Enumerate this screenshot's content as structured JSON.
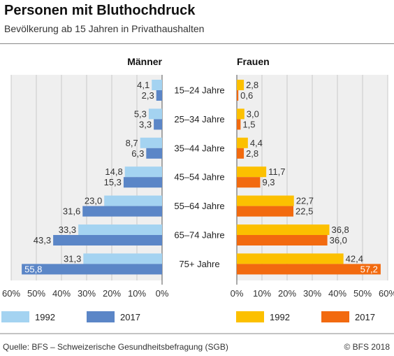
{
  "title": "Personen mit Bluthochdruck",
  "subtitle": "Bevölkerung ab 15 Jahren in Privathaushalten",
  "source": "Quelle: BFS – Schweizerische Gesundheitsbefragung (SGB)",
  "copyright": "© BFS 2018",
  "colors": {
    "men_1992": "#a4d3f1",
    "men_2017": "#5b86c7",
    "women_1992": "#fcc000",
    "women_2017": "#f26a0f",
    "plot_bg": "#efefef"
  },
  "chart_data": [
    {
      "type": "bar",
      "orientation": "horizontal",
      "direction": "right-to-left",
      "title": "Männer",
      "categories": [
        "15–24 Jahre",
        "25–34 Jahre",
        "35–44 Jahre",
        "45–54 Jahre",
        "55–64 Jahre",
        "65–74 Jahre",
        "75+ Jahre"
      ],
      "series": [
        {
          "name": "1992",
          "values": [
            4.1,
            5.3,
            8.7,
            14.8,
            23.0,
            33.3,
            31.3
          ]
        },
        {
          "name": "2017",
          "values": [
            2.3,
            3.3,
            6.3,
            15.3,
            31.6,
            43.3,
            55.8
          ]
        }
      ],
      "value_labels": [
        [
          "4,1",
          "5,3",
          "8,7",
          "14,8",
          "23,0",
          "33,3",
          "31,3"
        ],
        [
          "2,3",
          "3,3",
          "6,3",
          "15,3",
          "31,6",
          "43,3",
          "55,8"
        ]
      ],
      "xlim": [
        0,
        60
      ],
      "ticks": [
        60,
        50,
        40,
        30,
        20,
        10,
        0
      ],
      "tick_labels": [
        "60%",
        "50%",
        "40%",
        "30%",
        "20%",
        "10%",
        "0%"
      ],
      "grid": true,
      "legend": "bottom-left"
    },
    {
      "type": "bar",
      "orientation": "horizontal",
      "direction": "left-to-right",
      "title": "Frauen",
      "categories": [
        "15–24 Jahre",
        "25–34 Jahre",
        "35–44 Jahre",
        "45–54 Jahre",
        "55–64 Jahre",
        "65–74 Jahre",
        "75+ Jahre"
      ],
      "series": [
        {
          "name": "1992",
          "values": [
            2.8,
            3.0,
            4.4,
            11.7,
            22.7,
            36.8,
            42.4
          ]
        },
        {
          "name": "2017",
          "values": [
            0.6,
            1.5,
            2.8,
            9.3,
            22.5,
            36.0,
            57.2
          ]
        }
      ],
      "value_labels": [
        [
          "2,8",
          "3,0",
          "4,4",
          "11,7",
          "22,7",
          "36,8",
          "42,4"
        ],
        [
          "0,6",
          "1,5",
          "2,8",
          "9,3",
          "22,5",
          "36,0",
          "57,2"
        ]
      ],
      "xlim": [
        0,
        60
      ],
      "ticks": [
        0,
        10,
        20,
        30,
        40,
        50,
        60
      ],
      "tick_labels": [
        "0%",
        "10%",
        "20%",
        "30%",
        "40%",
        "50%",
        "60%"
      ],
      "grid": true,
      "legend": "bottom-right"
    }
  ]
}
